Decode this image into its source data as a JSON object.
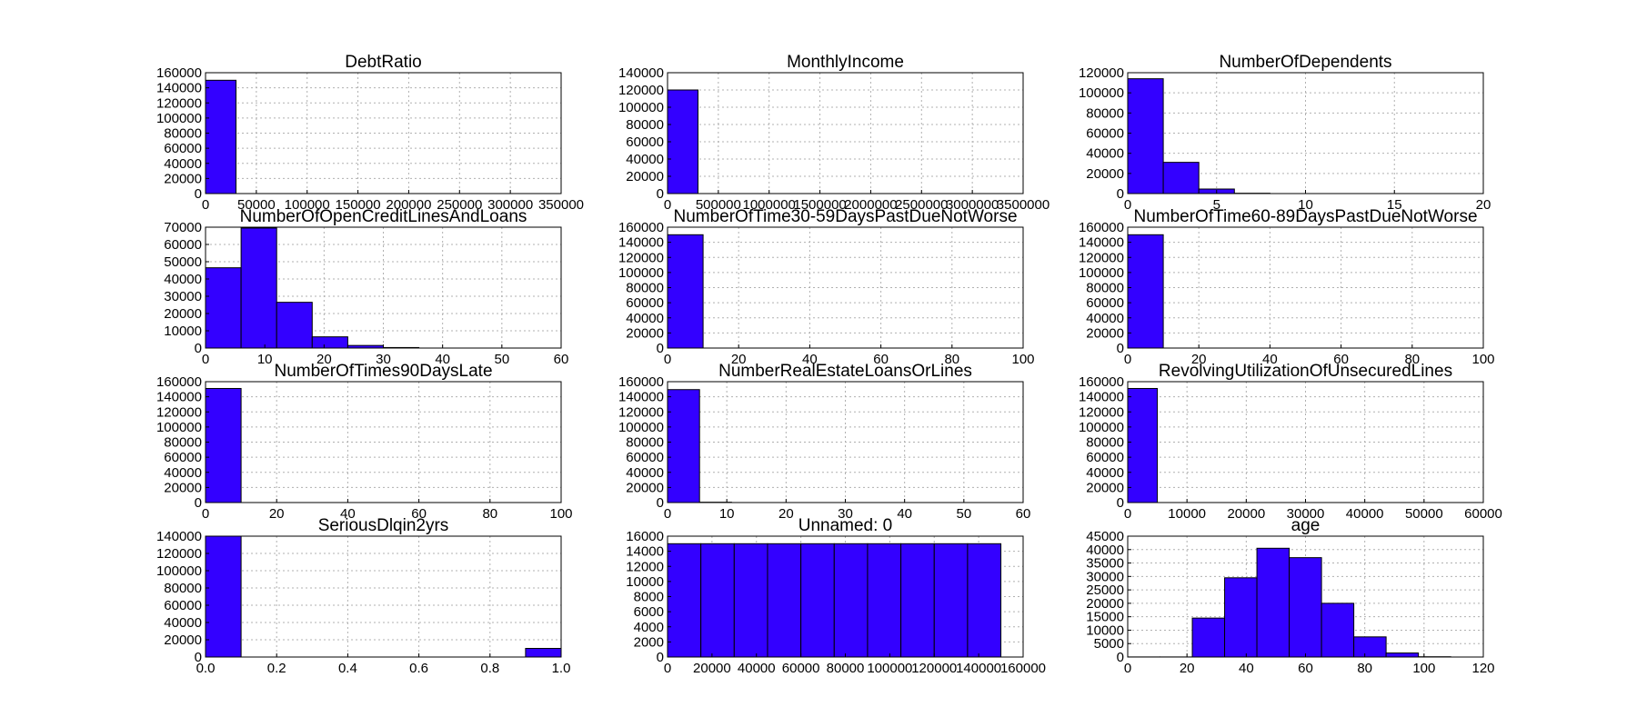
{
  "bar_color": "#3300ff",
  "chart_data": [
    {
      "type": "bar",
      "title": "DebtRatio",
      "xlim": [
        0,
        350000
      ],
      "ylim": [
        0,
        160000
      ],
      "xticks": [
        "0",
        "50000",
        "100000",
        "150000",
        "200000",
        "250000",
        "300000",
        "350000"
      ],
      "yticks": [
        "0",
        "20000",
        "40000",
        "60000",
        "80000",
        "100000",
        "120000",
        "140000",
        "160000"
      ],
      "bins": [
        {
          "x0": 0,
          "x1": 30000,
          "value": 150000
        }
      ],
      "grid": true
    },
    {
      "type": "bar",
      "title": "MonthlyIncome",
      "xlim": [
        0,
        3500000
      ],
      "ylim": [
        0,
        140000
      ],
      "xticks": [
        "0",
        "500000",
        "1000000",
        "1500000",
        "2000000",
        "2500000",
        "3000000",
        "3500000"
      ],
      "yticks": [
        "0",
        "20000",
        "40000",
        "60000",
        "80000",
        "100000",
        "120000",
        "140000"
      ],
      "bins": [
        {
          "x0": 0,
          "x1": 300000,
          "value": 120000
        }
      ],
      "grid": true
    },
    {
      "type": "bar",
      "title": "NumberOfDependents",
      "xlim": [
        0,
        20
      ],
      "ylim": [
        0,
        120000
      ],
      "xticks": [
        "0",
        "5",
        "10",
        "15",
        "20"
      ],
      "yticks": [
        "0",
        "20000",
        "40000",
        "60000",
        "80000",
        "100000",
        "120000"
      ],
      "bins": [
        {
          "x0": 0,
          "x1": 2,
          "value": 114000
        },
        {
          "x0": 2,
          "x1": 4,
          "value": 31000
        },
        {
          "x0": 4,
          "x1": 6,
          "value": 4500
        },
        {
          "x0": 6,
          "x1": 8,
          "value": 300
        }
      ],
      "grid": true
    },
    {
      "type": "bar",
      "title": "NumberOfOpenCreditLinesAndLoans",
      "xlim": [
        0,
        60
      ],
      "ylim": [
        0,
        70000
      ],
      "xticks": [
        "0",
        "10",
        "20",
        "30",
        "40",
        "50",
        "60"
      ],
      "yticks": [
        "0",
        "10000",
        "20000",
        "30000",
        "40000",
        "50000",
        "60000",
        "70000"
      ],
      "bins": [
        {
          "x0": 0,
          "x1": 6,
          "value": 46500
        },
        {
          "x0": 6,
          "x1": 12,
          "value": 69500
        },
        {
          "x0": 12,
          "x1": 18,
          "value": 26500
        },
        {
          "x0": 18,
          "x1": 24,
          "value": 6500
        },
        {
          "x0": 24,
          "x1": 30,
          "value": 1500
        },
        {
          "x0": 30,
          "x1": 36,
          "value": 300
        }
      ],
      "grid": true
    },
    {
      "type": "bar",
      "title": "NumberOfTime30-59DaysPastDueNotWorse",
      "xlim": [
        0,
        100
      ],
      "ylim": [
        0,
        160000
      ],
      "xticks": [
        "0",
        "20",
        "40",
        "60",
        "80",
        "100"
      ],
      "yticks": [
        "0",
        "20000",
        "40000",
        "60000",
        "80000",
        "100000",
        "120000",
        "140000",
        "160000"
      ],
      "bins": [
        {
          "x0": 0,
          "x1": 10,
          "value": 150000
        }
      ],
      "grid": true
    },
    {
      "type": "bar",
      "title": "NumberOfTime60-89DaysPastDueNotWorse",
      "xlim": [
        0,
        100
      ],
      "ylim": [
        0,
        160000
      ],
      "xticks": [
        "0",
        "20",
        "40",
        "60",
        "80",
        "100"
      ],
      "yticks": [
        "0",
        "20000",
        "40000",
        "60000",
        "80000",
        "100000",
        "120000",
        "140000",
        "160000"
      ],
      "bins": [
        {
          "x0": 0,
          "x1": 10,
          "value": 150000
        }
      ],
      "grid": true
    },
    {
      "type": "bar",
      "title": "NumberOfTimes90DaysLate",
      "xlim": [
        0,
        100
      ],
      "ylim": [
        0,
        160000
      ],
      "xticks": [
        "0",
        "20",
        "40",
        "60",
        "80",
        "100"
      ],
      "yticks": [
        "0",
        "20000",
        "40000",
        "60000",
        "80000",
        "100000",
        "120000",
        "140000",
        "160000"
      ],
      "bins": [
        {
          "x0": 0,
          "x1": 10,
          "value": 151000
        }
      ],
      "grid": true
    },
    {
      "type": "bar",
      "title": "NumberRealEstateLoansOrLines",
      "xlim": [
        0,
        60
      ],
      "ylim": [
        0,
        160000
      ],
      "xticks": [
        "0",
        "10",
        "20",
        "30",
        "40",
        "50",
        "60"
      ],
      "yticks": [
        "0",
        "20000",
        "40000",
        "60000",
        "80000",
        "100000",
        "120000",
        "140000",
        "160000"
      ],
      "bins": [
        {
          "x0": 0,
          "x1": 5.4,
          "value": 149500
        },
        {
          "x0": 5.4,
          "x1": 10.8,
          "value": 400
        }
      ],
      "grid": true
    },
    {
      "type": "bar",
      "title": "RevolvingUtilizationOfUnsecuredLines",
      "xlim": [
        0,
        60000
      ],
      "ylim": [
        0,
        160000
      ],
      "xticks": [
        "0",
        "10000",
        "20000",
        "30000",
        "40000",
        "50000",
        "60000"
      ],
      "yticks": [
        "0",
        "20000",
        "40000",
        "60000",
        "80000",
        "100000",
        "120000",
        "140000",
        "160000"
      ],
      "bins": [
        {
          "x0": 0,
          "x1": 5000,
          "value": 151000
        }
      ],
      "grid": true
    },
    {
      "type": "bar",
      "title": "SeriousDlqin2yrs",
      "xlim": [
        0,
        1
      ],
      "ylim": [
        0,
        140000
      ],
      "xticks": [
        "0.0",
        "0.2",
        "0.4",
        "0.6",
        "0.8",
        "1.0"
      ],
      "yticks": [
        "0",
        "20000",
        "40000",
        "60000",
        "80000",
        "100000",
        "120000",
        "140000"
      ],
      "bins": [
        {
          "x0": 0,
          "x1": 0.1,
          "value": 140000
        },
        {
          "x0": 0.9,
          "x1": 1.0,
          "value": 10000
        }
      ],
      "grid": true
    },
    {
      "type": "bar",
      "title": "Unnamed: 0",
      "xlim": [
        0,
        160000
      ],
      "ylim": [
        0,
        16000
      ],
      "xticks": [
        "0",
        "20000",
        "40000",
        "60000",
        "80000",
        "100000",
        "120000",
        "140000",
        "160000"
      ],
      "yticks": [
        "0",
        "2000",
        "4000",
        "6000",
        "8000",
        "10000",
        "12000",
        "14000",
        "16000"
      ],
      "bins": [
        {
          "x0": 0,
          "x1": 15000,
          "value": 15000
        },
        {
          "x0": 15000,
          "x1": 30000,
          "value": 15000
        },
        {
          "x0": 30000,
          "x1": 45000,
          "value": 15000
        },
        {
          "x0": 45000,
          "x1": 60000,
          "value": 15000
        },
        {
          "x0": 60000,
          "x1": 75000,
          "value": 15000
        },
        {
          "x0": 75000,
          "x1": 90000,
          "value": 15000
        },
        {
          "x0": 90000,
          "x1": 105000,
          "value": 15000
        },
        {
          "x0": 105000,
          "x1": 120000,
          "value": 15000
        },
        {
          "x0": 120000,
          "x1": 135000,
          "value": 15000
        },
        {
          "x0": 135000,
          "x1": 150000,
          "value": 15000
        }
      ],
      "grid": true
    },
    {
      "type": "bar",
      "title": "age",
      "xlim": [
        0,
        120
      ],
      "ylim": [
        0,
        45000
      ],
      "xticks": [
        "0",
        "20",
        "40",
        "60",
        "80",
        "100",
        "120"
      ],
      "yticks": [
        "0",
        "5000",
        "10000",
        "15000",
        "20000",
        "25000",
        "30000",
        "35000",
        "40000",
        "45000"
      ],
      "bins": [
        {
          "x0": 0,
          "x1": 10.9,
          "value": 30
        },
        {
          "x0": 10.9,
          "x1": 21.8,
          "value": 30
        },
        {
          "x0": 21.8,
          "x1": 32.7,
          "value": 14500
        },
        {
          "x0": 32.7,
          "x1": 43.6,
          "value": 29500
        },
        {
          "x0": 43.6,
          "x1": 54.5,
          "value": 40500
        },
        {
          "x0": 54.5,
          "x1": 65.4,
          "value": 37000
        },
        {
          "x0": 65.4,
          "x1": 76.3,
          "value": 20000
        },
        {
          "x0": 76.3,
          "x1": 87.2,
          "value": 7500
        },
        {
          "x0": 87.2,
          "x1": 98.1,
          "value": 1500
        },
        {
          "x0": 98.1,
          "x1": 109,
          "value": 100
        }
      ],
      "grid": true
    }
  ]
}
